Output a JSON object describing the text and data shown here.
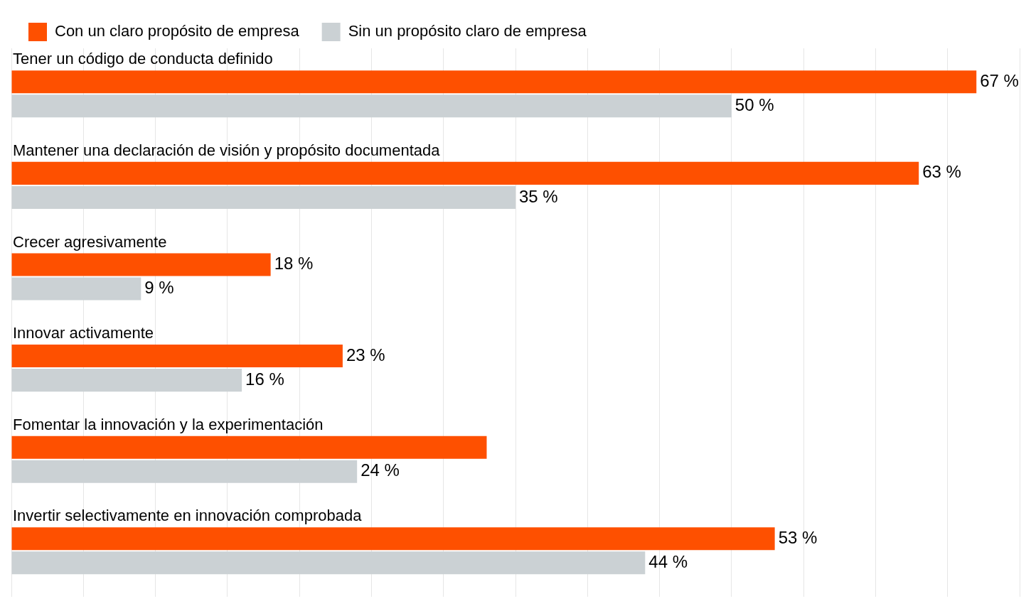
{
  "chart_data": {
    "type": "bar",
    "orientation": "horizontal",
    "categories": [
      "Tener un código de conducta definido",
      "Mantener una declaración de visión y propósito documentada",
      "Crecer agresivamente",
      "Innovar activamente",
      "Fomentar la innovación y la experimentación",
      "Invertir selectivamente en innovación comprobada"
    ],
    "series": [
      {
        "name": "Con un claro propósito de empresa",
        "color": "#fe5000",
        "values": [
          67,
          63,
          18,
          23,
          33,
          53
        ],
        "value_labels": [
          "67 %",
          "63 %",
          "18 %",
          "23 %",
          null,
          "53 %"
        ]
      },
      {
        "name": "Sin un propósito claro de empresa",
        "color": "#cbd1d4",
        "values": [
          50,
          35,
          9,
          16,
          24,
          44
        ],
        "value_labels": [
          "50 %",
          "35 %",
          "9 %",
          "16 %",
          "24 %",
          "44 %"
        ]
      }
    ],
    "xlim": [
      0,
      70
    ],
    "xticks": [
      {
        "value": 0,
        "label": null
      },
      {
        "value": 5,
        "label": null
      },
      {
        "value": 10,
        "label": null
      },
      {
        "value": 15,
        "label": null
      },
      {
        "value": 20,
        "label": null
      },
      {
        "value": 25,
        "label": null
      },
      {
        "value": 30,
        "label": null
      },
      {
        "value": 35,
        "label": null
      },
      {
        "value": 40,
        "label": null
      },
      {
        "value": 45,
        "label": null
      },
      {
        "value": 50,
        "label": null
      },
      {
        "value": 55,
        "label": null
      },
      {
        "value": 60,
        "label": null
      },
      {
        "value": 65,
        "label": null
      },
      {
        "value": 70,
        "label": null
      }
    ],
    "grid": "x",
    "legend": "top left"
  }
}
